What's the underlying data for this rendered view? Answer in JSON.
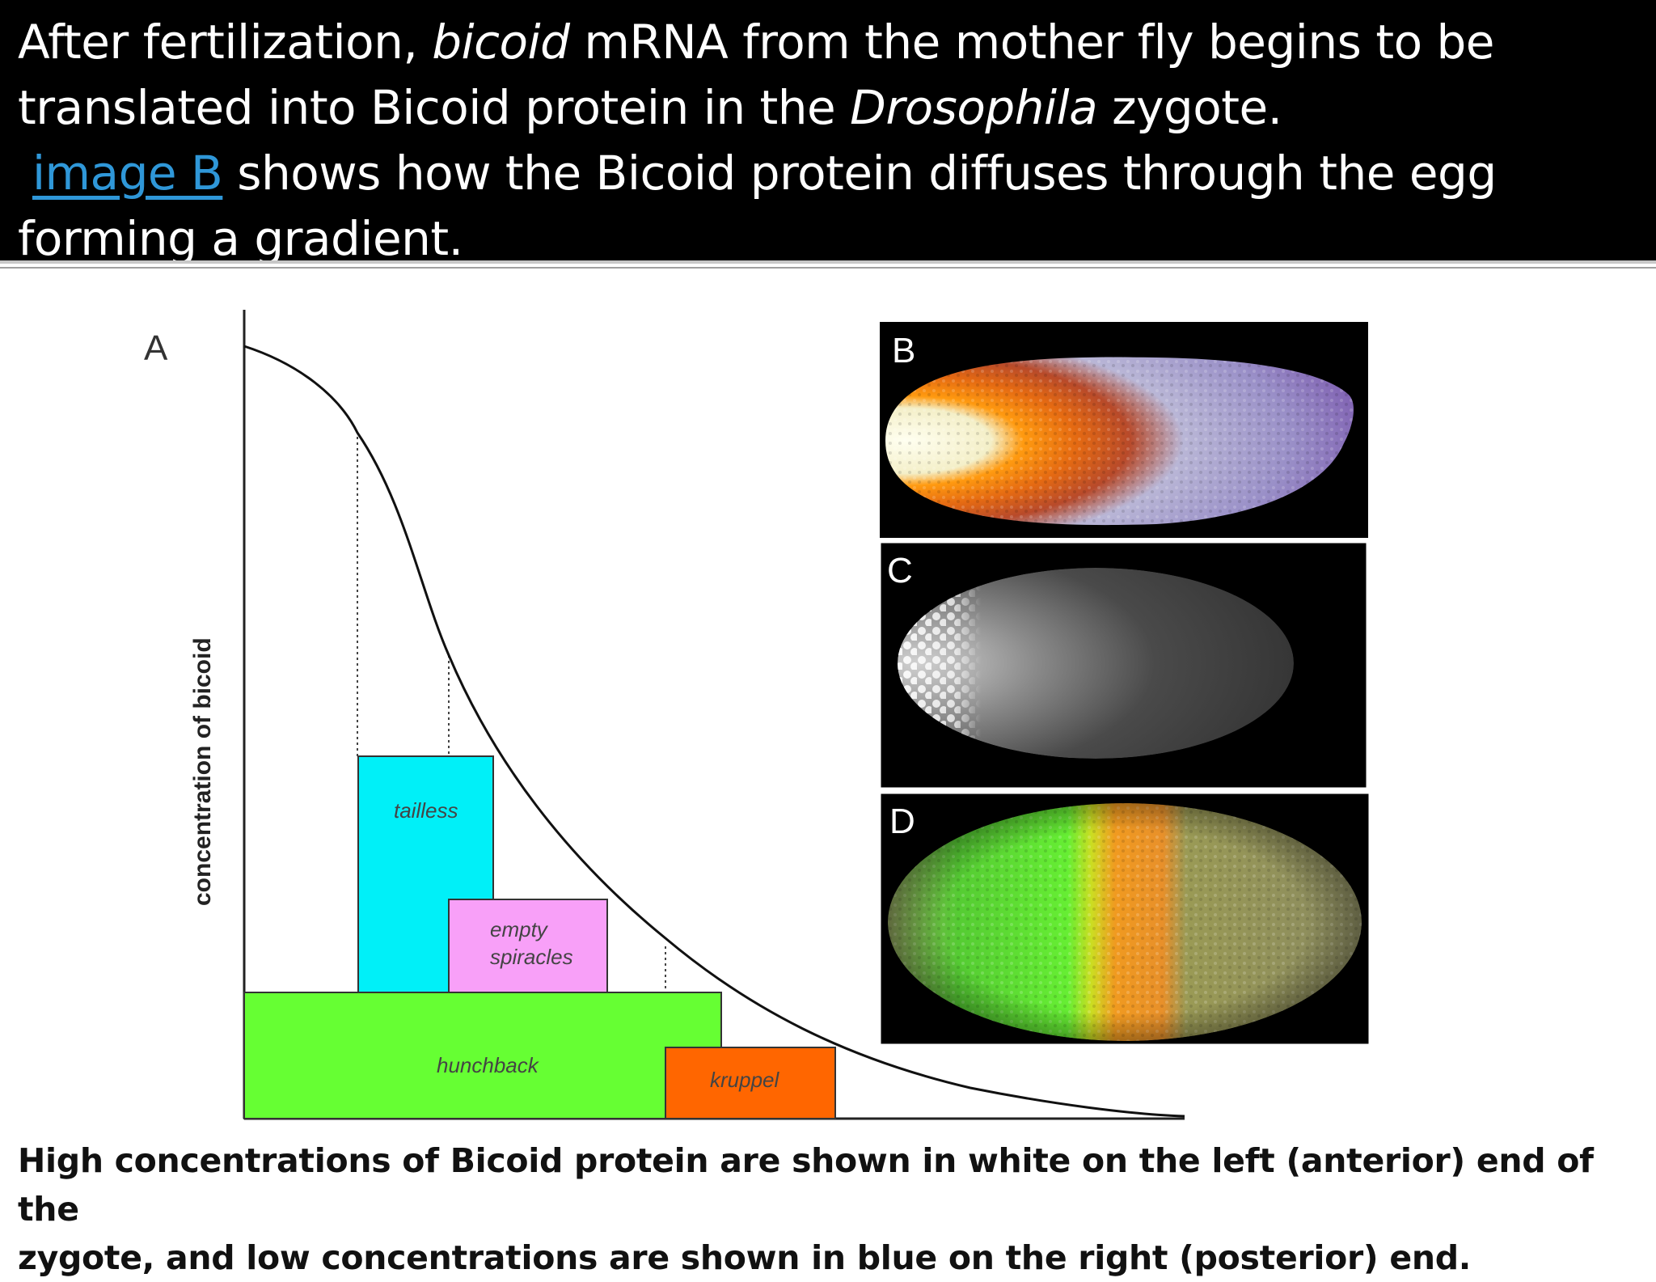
{
  "header": {
    "line1_a": "After fertilization, ",
    "line1_em": "bicoid",
    "line1_b": " mRNA from the mother fly begins to be",
    "line2_a": "translated into Bicoid protein in the ",
    "line2_em": "Drosophila",
    "line2_b": " zygote.",
    "link_text": "image B",
    "line3_b": " shows how the Bicoid protein diffuses through the egg",
    "line4": "forming a gradient."
  },
  "figure": {
    "panel_a_label": "A",
    "y_axis_label": "concentration of bicoid",
    "genes": [
      "tailless",
      "empty",
      "spiracles",
      "hunchback",
      "kruppel"
    ],
    "panel_labels": [
      "B",
      "C",
      "D"
    ]
  },
  "caption": {
    "line1": "High concentrations of Bicoid protein are shown in white on the left (anterior) end of the",
    "line2": "zygote, and low concentrations are shown in blue on the right (posterior) end."
  },
  "colors": {
    "tailless": "#00f0f8",
    "empty_spiracles": "#f8a0f8",
    "hunchback": "#66ff33",
    "kruppel": "#ff6600",
    "link": "#2f97d8"
  }
}
